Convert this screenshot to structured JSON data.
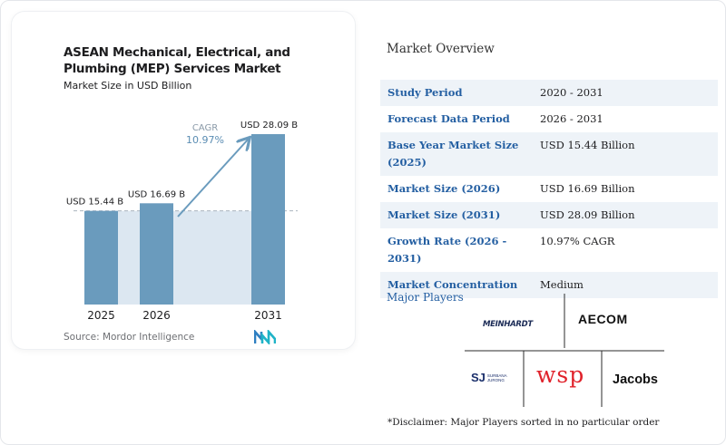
{
  "chart_data": {
    "type": "bar",
    "title": "ASEAN Mechanical, Electrical, and Plumbing (MEP) Services Market",
    "subtitle": "Market Size in USD Billion",
    "categories": [
      "2025",
      "2026",
      "2031"
    ],
    "values": [
      15.44,
      16.69,
      28.09
    ],
    "value_labels": [
      "USD 15.44 B",
      "USD 16.69 B",
      "USD 28.09 B"
    ],
    "cagr_label": "CAGR",
    "cagr_value": "10.97%",
    "ylim": [
      0,
      32
    ],
    "colors": {
      "bar": "#6a9bbd",
      "bar_top": "#5b8db3",
      "band": "#dce7f1",
      "arrow": "#6a9bbd",
      "dashed": "#a9b4bf"
    }
  },
  "source": "Source: Mordor Intelligence",
  "overview": {
    "title": "Market Overview",
    "rows": [
      {
        "label": "Study Period",
        "value": "2020 - 2031"
      },
      {
        "label": "Forecast Data Period",
        "value": "2026 - 2031"
      },
      {
        "label": "Base Year Market Size (2025)",
        "value": "USD 15.44 Billion"
      },
      {
        "label": "Market Size (2026)",
        "value": "USD 16.69 Billion"
      },
      {
        "label": "Market Size (2031)",
        "value": "USD 28.09 Billion"
      },
      {
        "label": "Growth Rate (2026 - 2031)",
        "value": "10.97% CAGR"
      },
      {
        "label": "Market Concentration",
        "value": "Medium"
      }
    ]
  },
  "players": {
    "title": "Major Players",
    "logos": {
      "meinhardt": "MEINHARDT",
      "aecom": "AECOM",
      "surbana_mark": "SJ",
      "surbana_line1": "SURBANA",
      "surbana_line2": "JURONG",
      "wsp": "wsp",
      "jacobs": "Jacobs"
    },
    "disclaimer": "*Disclaimer: Major Players sorted in no particular order"
  }
}
